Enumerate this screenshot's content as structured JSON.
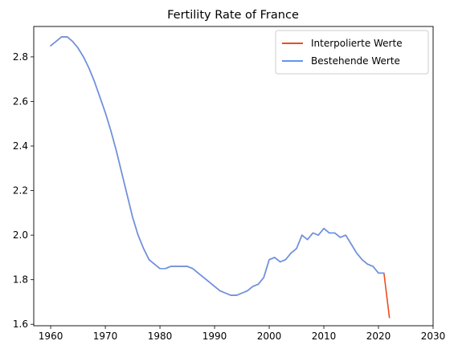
{
  "chart_data": {
    "type": "line",
    "title": "Fertility Rate of France",
    "xlabel": "",
    "ylabel": "",
    "xlim": [
      1956.9,
      2030
    ],
    "ylim": [
      1.5935,
      2.9365
    ],
    "x_ticks": [
      1960,
      1970,
      1980,
      1990,
      2000,
      2010,
      2020,
      2030
    ],
    "y_ticks": [
      1.6,
      1.8,
      2.0,
      2.2,
      2.4,
      2.6,
      2.8
    ],
    "grid": false,
    "legend_position": "top-right",
    "series": [
      {
        "name": "Interpolierte Werte",
        "color": "#ee4d1c",
        "x": [
          1960,
          1961,
          1962,
          1963,
          1964,
          1965,
          1966,
          1967,
          1968,
          1969,
          1970,
          1971,
          1972,
          1973,
          1974,
          1975,
          1976,
          1977,
          1978,
          1979,
          1980,
          1981,
          1982,
          1983,
          1984,
          1985,
          1986,
          1987,
          1988,
          1989,
          1990,
          1991,
          1992,
          1993,
          1994,
          1995,
          1996,
          1997,
          1998,
          1999,
          2000,
          2001,
          2002,
          2003,
          2004,
          2005,
          2006,
          2007,
          2008,
          2009,
          2010,
          2011,
          2012,
          2013,
          2014,
          2015,
          2016,
          2017,
          2018,
          2019,
          2020,
          2021,
          2022
        ],
        "y": [
          2.85,
          2.87,
          2.89,
          2.89,
          2.87,
          2.84,
          2.8,
          2.75,
          2.69,
          2.62,
          2.55,
          2.47,
          2.38,
          2.28,
          2.18,
          2.08,
          2.0,
          1.94,
          1.89,
          1.87,
          1.85,
          1.85,
          1.86,
          1.86,
          1.86,
          1.86,
          1.85,
          1.83,
          1.81,
          1.79,
          1.77,
          1.75,
          1.74,
          1.73,
          1.73,
          1.74,
          1.75,
          1.77,
          1.78,
          1.81,
          1.89,
          1.9,
          1.88,
          1.89,
          1.92,
          1.94,
          2.0,
          1.98,
          2.01,
          2.0,
          2.03,
          2.01,
          2.01,
          1.99,
          2.0,
          1.96,
          1.92,
          1.89,
          1.87,
          1.86,
          1.83,
          1.83,
          1.63
        ]
      },
      {
        "name": "Bestehende Werte",
        "color": "#6495ed",
        "x": [
          1960,
          1961,
          1962,
          1963,
          1964,
          1965,
          1966,
          1967,
          1968,
          1969,
          1970,
          1971,
          1972,
          1973,
          1974,
          1975,
          1976,
          1977,
          1978,
          1979,
          1980,
          1981,
          1982,
          1983,
          1984,
          1985,
          1986,
          1987,
          1988,
          1989,
          1990,
          1991,
          1992,
          1993,
          1994,
          1995,
          1996,
          1997,
          1998,
          1999,
          2000,
          2001,
          2002,
          2003,
          2004,
          2005,
          2006,
          2007,
          2008,
          2009,
          2010,
          2011,
          2012,
          2013,
          2014,
          2015,
          2016,
          2017,
          2018,
          2019,
          2020,
          2021
        ],
        "y": [
          2.85,
          2.87,
          2.89,
          2.89,
          2.87,
          2.84,
          2.8,
          2.75,
          2.69,
          2.62,
          2.55,
          2.47,
          2.38,
          2.28,
          2.18,
          2.08,
          2.0,
          1.94,
          1.89,
          1.87,
          1.85,
          1.85,
          1.86,
          1.86,
          1.86,
          1.86,
          1.85,
          1.83,
          1.81,
          1.79,
          1.77,
          1.75,
          1.74,
          1.73,
          1.73,
          1.74,
          1.75,
          1.77,
          1.78,
          1.81,
          1.89,
          1.9,
          1.88,
          1.89,
          1.92,
          1.94,
          2.0,
          1.98,
          2.01,
          2.0,
          2.03,
          2.01,
          2.01,
          1.99,
          2.0,
          1.96,
          1.92,
          1.89,
          1.87,
          1.86,
          1.83,
          1.83
        ]
      }
    ]
  }
}
